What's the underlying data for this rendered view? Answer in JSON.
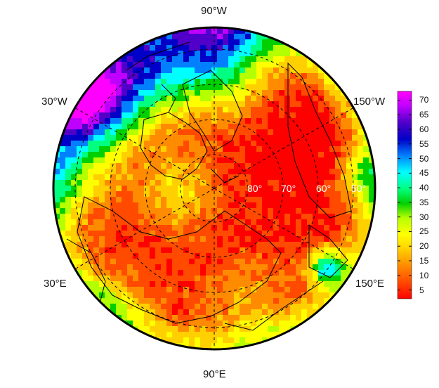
{
  "map": {
    "projection": "polar-stereographic-north",
    "longitude_labels": {
      "top": "90°W",
      "upper_left": "30°W",
      "upper_right": "150°W",
      "lower_left": "30°E",
      "lower_right": "150°E",
      "bottom": "90°E"
    },
    "latitude_labels": [
      "80°",
      "70°",
      "60°",
      "50°"
    ]
  },
  "colorbar": {
    "ticks": [
      "70",
      "65",
      "60",
      "55",
      "50",
      "45",
      "40",
      "35",
      "30",
      "25",
      "20",
      "15",
      "10",
      "5"
    ],
    "colors": [
      "#ff0000",
      "#ff4a00",
      "#ff8c00",
      "#ffd000",
      "#ffff00",
      "#b4ff00",
      "#00d000",
      "#00ff80",
      "#00ffff",
      "#0080ff",
      "#0000c8",
      "#5000c8",
      "#c000ff",
      "#ff00ff"
    ],
    "range": [
      2,
      73
    ]
  }
}
